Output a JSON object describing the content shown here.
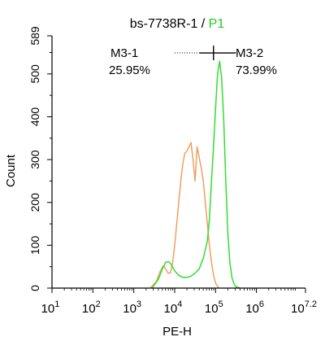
{
  "chart_data": {
    "type": "histogram",
    "title": {
      "prefix": "bs-7738R-1 / ",
      "highlight": "P1",
      "highlight_color": "#22cc22"
    },
    "xlabel": "PE-H",
    "ylabel": "Count",
    "x_scale": "log10",
    "xlim_log10": [
      1,
      7.2
    ],
    "ylim": [
      0,
      589
    ],
    "x_ticks": [
      {
        "base": "10",
        "exp": "1",
        "log10": 1
      },
      {
        "base": "10",
        "exp": "2",
        "log10": 2
      },
      {
        "base": "10",
        "exp": "3",
        "log10": 3
      },
      {
        "base": "10",
        "exp": "4",
        "log10": 4
      },
      {
        "base": "10",
        "exp": "5",
        "log10": 5
      },
      {
        "base": "10",
        "exp": "6",
        "log10": 6
      },
      {
        "base": "10",
        "exp": "7.2",
        "log10": 7.2
      }
    ],
    "y_ticks": [
      0,
      100,
      200,
      300,
      400,
      500,
      589
    ],
    "series": [
      {
        "color": "#f0a060",
        "x_log10": [
          3.4,
          3.55,
          3.65,
          3.72,
          3.78,
          3.84,
          3.9,
          3.95,
          4.0,
          4.05,
          4.1,
          4.15,
          4.2,
          4.25,
          4.3,
          4.35,
          4.4,
          4.45,
          4.5,
          4.55,
          4.6,
          4.65,
          4.7,
          4.75,
          4.8,
          4.85,
          4.9,
          4.95,
          5.0,
          5.08
        ],
        "counts": [
          0,
          15,
          40,
          52,
          45,
          35,
          36,
          60,
          100,
          150,
          200,
          250,
          290,
          315,
          320,
          330,
          340,
          300,
          250,
          330,
          305,
          280,
          250,
          200,
          150,
          100,
          60,
          30,
          12,
          0
        ]
      },
      {
        "color": "#33dd33",
        "x_log10": [
          3.45,
          3.6,
          3.7,
          3.78,
          3.85,
          3.92,
          4.0,
          4.1,
          4.2,
          4.3,
          4.4,
          4.5,
          4.6,
          4.7,
          4.8,
          4.85,
          4.9,
          4.95,
          5.0,
          5.05,
          5.1,
          5.15,
          5.2,
          5.25,
          5.3,
          5.35,
          5.4,
          5.45,
          5.5,
          5.6
        ],
        "counts": [
          0,
          20,
          45,
          60,
          62,
          55,
          40,
          30,
          25,
          25,
          28,
          35,
          45,
          70,
          110,
          160,
          250,
          330,
          420,
          500,
          530,
          490,
          390,
          250,
          130,
          60,
          25,
          10,
          3,
          0
        ]
      }
    ],
    "gates": [
      {
        "name": "M3-1",
        "percent": "25.95%",
        "x_start_log10": 4.0,
        "x_end_log10": 4.95
      },
      {
        "name": "M3-2",
        "percent": "73.99%",
        "x_start_log10": 4.95,
        "x_end_log10": 5.5
      }
    ],
    "gate_y": 549
  }
}
